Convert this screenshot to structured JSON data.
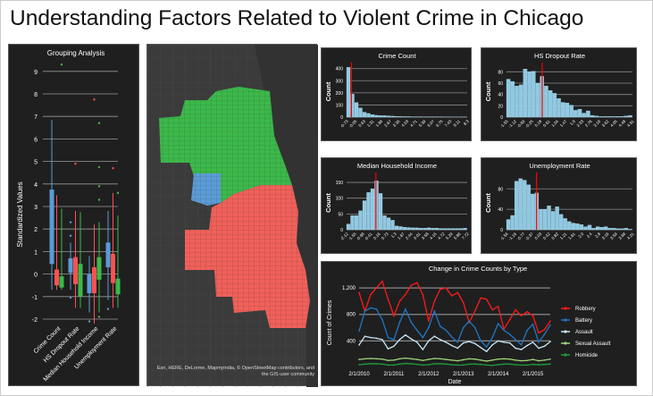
{
  "title": "Understanding Factors Related to Violent Crime in Chicago",
  "colors": {
    "blue": "#5b9bd5",
    "red": "#ff5050",
    "green": "#3cb84a",
    "bar": "#8fc9e3",
    "mean_line": "#ff0000"
  },
  "map": {
    "attribution": "Esri, HERE, DeLorme, Mapmyindia, © OpenStreetMap contributors, and the GIS user community",
    "cluster_colors": [
      "#3cb84a",
      "#5b9bd5",
      "#f0605a"
    ]
  },
  "chart_data": [
    {
      "type": "box",
      "title": "Grouping Analysis",
      "ylabel": "Standardized Values",
      "ylim": [
        -2,
        9
      ],
      "yticks": [
        -2,
        -1,
        0,
        1,
        2,
        3,
        4,
        5,
        6,
        7,
        8,
        9
      ],
      "grid": true,
      "categories": [
        "Crime Count",
        "HS Dropout Rate",
        "Median Household Income",
        "Unemployment Rate"
      ],
      "groups": [
        [
          {
            "color": "blue",
            "stats": [
              -0.7,
              0.45,
              2.0,
              3.75,
              6.85
            ],
            "outliers": []
          },
          {
            "color": "red",
            "stats": [
              -0.7,
              -0.5,
              -0.1,
              0.2,
              3.5
            ],
            "outliers": []
          },
          {
            "color": "green",
            "stats": [
              -0.7,
              -0.6,
              -0.4,
              -0.1,
              2.9
            ],
            "outliers": [
              9.3
            ]
          }
        ],
        [
          {
            "color": "blue",
            "stats": [
              -0.7,
              0.05,
              0.5,
              0.7,
              1.4
            ],
            "outliers": [
              2.3,
              1.7,
              -1.05
            ]
          },
          {
            "color": "red",
            "stats": [
              -1.5,
              -0.45,
              0.2,
              0.75,
              2.8
            ],
            "outliers": [
              4.9
            ]
          },
          {
            "color": "green",
            "stats": [
              -1.5,
              -1.0,
              -0.3,
              0.45,
              2.75
            ],
            "outliers": []
          }
        ],
        [
          {
            "color": "blue",
            "stats": [
              -1.7,
              -0.85,
              -0.5,
              0.0,
              0.8
            ],
            "outliers": [
              -2.1
            ]
          },
          {
            "color": "red",
            "stats": [
              -2.2,
              -0.85,
              -0.3,
              0.3,
              2.2
            ],
            "outliers": [
              7.75
            ]
          },
          {
            "color": "green",
            "stats": [
              -1.7,
              -0.25,
              0.3,
              0.75,
              2.3
            ],
            "outliers": [
              6.7,
              4.75,
              3.9,
              3.3,
              -1.9
            ]
          }
        ],
        [
          {
            "color": "blue",
            "stats": [
              -1.15,
              0.3,
              0.8,
              1.4,
              2.8
            ],
            "outliers": [
              -1.55
            ]
          },
          {
            "color": "red",
            "stats": [
              -1.5,
              -0.4,
              0.3,
              0.9,
              3.6
            ],
            "outliers": [
              4.7
            ]
          },
          {
            "color": "green",
            "stats": [
              -1.5,
              -0.9,
              -0.6,
              -0.2,
              2.6
            ],
            "outliers": [
              3.6
            ]
          }
        ]
      ]
    },
    {
      "type": "bar",
      "title": "Crime Count",
      "ylabel": "Count",
      "ylim": [
        0,
        420
      ],
      "yticks": [
        0,
        100,
        200,
        300,
        400
      ],
      "mean_bin": 1.2,
      "xticks": [
        "-0.73",
        "-0.05",
        "0.63",
        "1.31",
        "1.99",
        "2.67",
        "3.35",
        "4.03",
        "4.71",
        "5.39",
        "6.07",
        "6.75",
        "7.43",
        "8.11",
        "8.3"
      ],
      "values": [
        410,
        190,
        120,
        75,
        40,
        30,
        20,
        15,
        12,
        12,
        10,
        8,
        6,
        5,
        4,
        4,
        3,
        3,
        3,
        2,
        2,
        2,
        2,
        2,
        1,
        1,
        1,
        1,
        1,
        1
      ]
    },
    {
      "type": "bar",
      "title": "HS Dropout Rate",
      "ylabel": "Count",
      "ylim": [
        0,
        90
      ],
      "yticks": [
        0,
        20,
        40,
        60,
        80
      ],
      "mean_bin": 8.5,
      "xticks": [
        "-1.55",
        "-1.12",
        "-0.69",
        "-0.25",
        "0.18",
        "0.61",
        "1.04",
        "1.47",
        "1.9",
        "2.33",
        "2.76",
        "3.19",
        "3.62",
        "4.05",
        "4.48",
        "4.91"
      ],
      "values": [
        67,
        63,
        55,
        57,
        85,
        80,
        81,
        60,
        72,
        55,
        47,
        42,
        33,
        26,
        25,
        21,
        12,
        14,
        7,
        11,
        3,
        2,
        1,
        1,
        1,
        1,
        1,
        1,
        2,
        3
      ]
    },
    {
      "type": "bar",
      "title": "Median Household Income",
      "ylabel": "Count",
      "ylim": [
        0,
        170
      ],
      "yticks": [
        0,
        50,
        100,
        150
      ],
      "mean_bin": 7.3,
      "xticks": [
        "-2.12",
        "-1.55",
        "-0.98",
        "-0.41",
        "0.16",
        "0.73",
        "1.3",
        "1.87",
        "2.44",
        "3.01",
        "3.58",
        "4.15",
        "4.72",
        "5.29",
        "5.86",
        "7.72"
      ],
      "values": [
        18,
        45,
        45,
        60,
        92,
        118,
        130,
        155,
        115,
        45,
        38,
        30,
        12,
        10,
        8,
        7,
        6,
        6,
        5,
        5,
        6,
        5,
        5,
        4,
        4,
        4,
        4,
        4,
        4,
        5
      ]
    },
    {
      "type": "bar",
      "title": "Unemployment Rate",
      "ylabel": "Count",
      "ylim": [
        0,
        105
      ],
      "yticks": [
        0,
        40,
        80
      ],
      "mean_bin": 7.4,
      "xticks": [
        "-1.56",
        "-1.16",
        "-0.77",
        "-0.37",
        "0.03",
        "0.42",
        "0.82",
        "1.21",
        "1.61",
        "2.0",
        "2.4",
        "2.8",
        "3.19",
        "3.59",
        "3.98",
        "4.21"
      ],
      "values": [
        20,
        28,
        95,
        100,
        97,
        88,
        70,
        72,
        40,
        40,
        47,
        36,
        45,
        30,
        22,
        16,
        13,
        12,
        10,
        6,
        9,
        3,
        6,
        5,
        6,
        3,
        3,
        2,
        2,
        3,
        1
      ]
    },
    {
      "type": "line",
      "title": "Change in Crime Counts by Type",
      "xlabel": "Date",
      "ylabel": "Count of Crimes",
      "ylim": [
        0,
        1350
      ],
      "yticks": [
        400,
        800,
        1200
      ],
      "ytick_labels": [
        "400",
        "800",
        "1,200"
      ],
      "grid": true,
      "legend": "right",
      "xticks": [
        "2/1/2010",
        "2/1/2011",
        "2/1/2012",
        "2/1/2013",
        "2/1/2014",
        "2/1/2015"
      ],
      "x": [
        "2/2010",
        "4/2010",
        "6/2010",
        "8/2010",
        "10/2010",
        "12/2010",
        "2/2011",
        "4/2011",
        "6/2011",
        "8/2011",
        "10/2011",
        "12/2011",
        "2/2012",
        "4/2012",
        "6/2012",
        "8/2012",
        "10/2012",
        "12/2012",
        "2/2013",
        "4/2013",
        "6/2013",
        "8/2013",
        "10/2013",
        "12/2013",
        "2/2014",
        "4/2014",
        "6/2014",
        "8/2014",
        "10/2014",
        "12/2014",
        "2/2015",
        "4/2015",
        "6/2015",
        "8/2015"
      ],
      "series": [
        {
          "name": "Robbery",
          "color": "#ff1a1a",
          "values": [
            1130,
            850,
            1100,
            1200,
            1300,
            1030,
            780,
            1000,
            1100,
            1240,
            1280,
            1100,
            700,
            1000,
            1180,
            1200,
            1080,
            1130,
            980,
            680,
            850,
            1050,
            1030,
            870,
            920,
            580,
            720,
            870,
            780,
            840,
            780,
            520,
            570,
            700
          ]
        },
        {
          "name": "Battery",
          "color": "#1f78c8",
          "values": [
            550,
            850,
            900,
            880,
            720,
            450,
            420,
            680,
            880,
            680,
            560,
            450,
            600,
            850,
            620,
            560,
            460,
            380,
            600,
            700,
            600,
            400,
            310,
            450,
            660,
            560,
            500,
            420,
            340,
            560,
            650,
            380,
            500,
            640
          ]
        },
        {
          "name": "Assault",
          "color": "#c9e6f5",
          "values": [
            340,
            470,
            450,
            440,
            420,
            280,
            320,
            420,
            490,
            430,
            380,
            270,
            400,
            470,
            420,
            380,
            330,
            290,
            370,
            390,
            360,
            300,
            240,
            340,
            400,
            380,
            370,
            290,
            270,
            330,
            380,
            290,
            320,
            390
          ]
        },
        {
          "name": "Sexual Assault",
          "color": "#9fd67a",
          "values": [
            120,
            130,
            135,
            130,
            125,
            105,
            110,
            130,
            140,
            130,
            120,
            105,
            120,
            135,
            130,
            120,
            110,
            100,
            115,
            130,
            125,
            110,
            95,
            110,
            125,
            130,
            125,
            110,
            100,
            105,
            120,
            100,
            110,
            125
          ]
        },
        {
          "name": "Homicide",
          "color": "#1e9e3c",
          "values": [
            40,
            50,
            55,
            55,
            50,
            35,
            35,
            50,
            60,
            55,
            45,
            35,
            40,
            55,
            55,
            50,
            40,
            35,
            35,
            50,
            50,
            45,
            35,
            30,
            40,
            50,
            50,
            40,
            35,
            35,
            45,
            40,
            45,
            50
          ]
        }
      ]
    }
  ]
}
